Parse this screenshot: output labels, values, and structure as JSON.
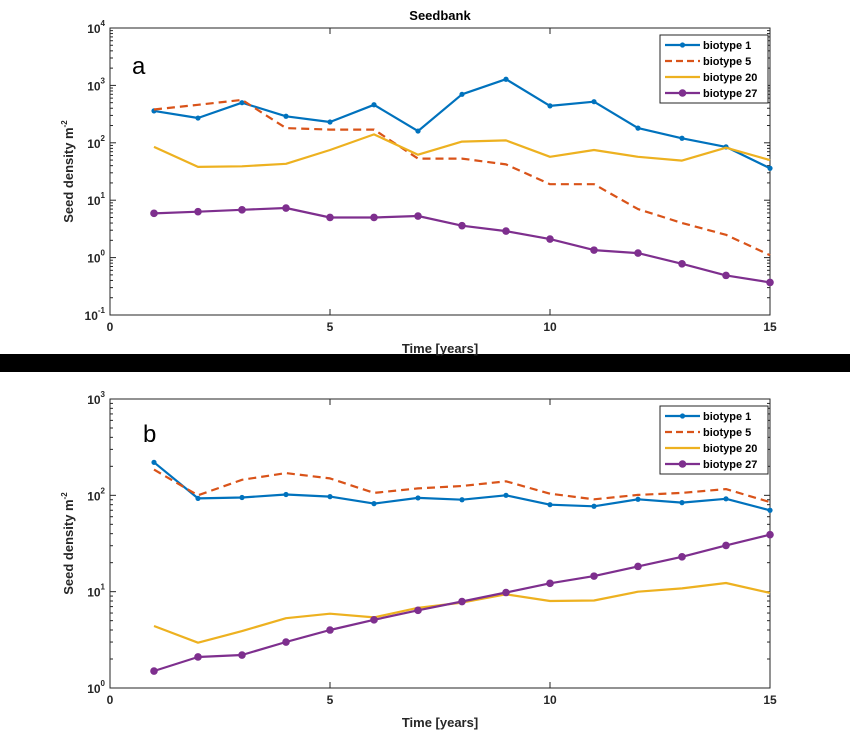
{
  "colors": {
    "biotype1": "#0072BD",
    "biotype5": "#D95319",
    "biotype20": "#EDB120",
    "biotype27": "#7E2F8E",
    "separator": "#000000"
  },
  "chart_data": [
    {
      "type": "line",
      "panel": "a",
      "title": "Seedbank",
      "xlabel": "Time [years]",
      "ylabel_base": "Seed density  m",
      "ylabel_exponent": "-2",
      "xlim": [
        0,
        15
      ],
      "ylim": [
        0.1,
        10000
      ],
      "yscale": "log",
      "x_ticks": [
        0,
        5,
        10,
        15
      ],
      "x_tick_labels": [
        "0",
        "5",
        "10",
        "15"
      ],
      "y_ticks": [
        0.1,
        1,
        10,
        100,
        1000,
        10000
      ],
      "y_tick_labels": [
        {
          "base": "10",
          "exp": "-1"
        },
        {
          "base": "10",
          "exp": "0"
        },
        {
          "base": "10",
          "exp": "1"
        },
        {
          "base": "10",
          "exp": "2"
        },
        {
          "base": "10",
          "exp": "3"
        },
        {
          "base": "10",
          "exp": "4"
        }
      ],
      "grid": false,
      "legend_position": "top-right",
      "x": [
        1,
        2,
        3,
        4,
        5,
        6,
        7,
        8,
        9,
        10,
        11,
        12,
        13,
        14,
        15
      ],
      "series": [
        {
          "name": "biotype 1",
          "style": "solid-dots",
          "color": "#0072BD",
          "values": [
            360,
            270,
            500,
            290,
            230,
            460,
            160,
            700,
            1280,
            440,
            520,
            180,
            120,
            85,
            36
          ]
        },
        {
          "name": "biotype 5",
          "style": "dashed",
          "color": "#D95319",
          "values": [
            380,
            460,
            560,
            180,
            170,
            170,
            53,
            53,
            42,
            19,
            19,
            7,
            4,
            2.5,
            1.1
          ]
        },
        {
          "name": "biotype 20",
          "style": "solid",
          "color": "#EDB120",
          "values": [
            85,
            38,
            39,
            43,
            75,
            140,
            62,
            105,
            110,
            57,
            75,
            57,
            49,
            82,
            50
          ]
        },
        {
          "name": "biotype 27",
          "style": "solid-dots-large",
          "color": "#7E2F8E",
          "values": [
            5.9,
            6.3,
            6.8,
            7.3,
            5.0,
            5.0,
            5.3,
            3.6,
            2.9,
            2.1,
            1.35,
            1.2,
            0.78,
            0.49,
            0.37
          ]
        }
      ]
    },
    {
      "type": "line",
      "panel": "b",
      "title": "",
      "xlabel": "Time [years]",
      "ylabel_base": "Seed density  m",
      "ylabel_exponent": "-2",
      "xlim": [
        0,
        15
      ],
      "ylim": [
        1,
        1000
      ],
      "yscale": "log",
      "x_ticks": [
        0,
        5,
        10,
        15
      ],
      "x_tick_labels": [
        "0",
        "5",
        "10",
        "15"
      ],
      "y_ticks": [
        1,
        10,
        100,
        1000
      ],
      "y_tick_labels": [
        {
          "base": "10",
          "exp": "0"
        },
        {
          "base": "10",
          "exp": "1"
        },
        {
          "base": "10",
          "exp": "2"
        },
        {
          "base": "10",
          "exp": "3"
        }
      ],
      "grid": false,
      "legend_position": "top-right",
      "x": [
        1,
        2,
        3,
        4,
        5,
        6,
        7,
        8,
        9,
        10,
        11,
        12,
        13,
        14,
        15
      ],
      "series": [
        {
          "name": "biotype 1",
          "style": "solid-dots",
          "color": "#0072BD",
          "values": [
            220,
            93,
            95,
            102,
            97,
            82,
            94,
            90,
            100,
            80,
            77,
            91,
            84,
            92,
            70
          ]
        },
        {
          "name": "biotype 5",
          "style": "dashed",
          "color": "#D95319",
          "values": [
            185,
            100,
            145,
            170,
            150,
            106,
            118,
            125,
            140,
            104,
            91,
            101,
            106,
            116,
            85
          ]
        },
        {
          "name": "biotype 20",
          "style": "solid",
          "color": "#EDB120",
          "values": [
            4.4,
            2.95,
            3.9,
            5.3,
            5.9,
            5.4,
            6.8,
            7.7,
            9.4,
            8.0,
            8.1,
            10.0,
            10.8,
            12.3,
            9.7
          ]
        },
        {
          "name": "biotype 27",
          "style": "solid-dots-large",
          "color": "#7E2F8E",
          "values": [
            1.5,
            2.1,
            2.2,
            3.0,
            4.0,
            5.1,
            6.4,
            7.9,
            9.8,
            12.2,
            14.5,
            18.3,
            23.0,
            30.2,
            39.0
          ]
        }
      ]
    }
  ]
}
